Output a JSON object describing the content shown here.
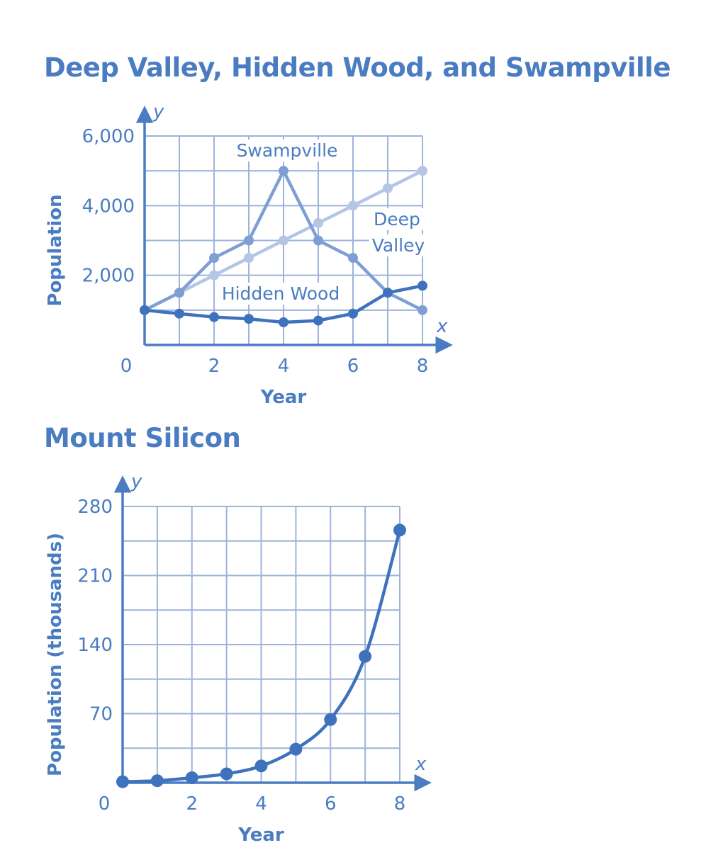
{
  "colors": {
    "axis": "#4a7cc2",
    "grid": "#9db3dc",
    "swampville": "#7e9fd4",
    "deep_valley": "#b4c5e6",
    "hidden_wood": "#3f72bd",
    "mount_silicon": "#3f72bd"
  },
  "chart_data": [
    {
      "type": "line",
      "title": "Deep Valley, Hidden Wood, and Swampville",
      "xlabel": "Year",
      "ylabel": "Population",
      "x_axis_var": "x",
      "y_axis_var": "y",
      "origin_label": "0",
      "xlim": [
        0,
        8
      ],
      "ylim": [
        0,
        6000
      ],
      "grid": true,
      "x_ticks": [
        2,
        4,
        6,
        8
      ],
      "x_tick_labels": [
        "2",
        "4",
        "6",
        "8"
      ],
      "y_ticks": [
        2000,
        4000,
        6000
      ],
      "y_tick_labels": [
        "2,000",
        "4,000",
        "6,000"
      ],
      "x": [
        0,
        1,
        2,
        3,
        4,
        5,
        6,
        7,
        8
      ],
      "series": [
        {
          "name": "Swampville",
          "color_key": "swampville",
          "values": [
            1000,
            1500,
            2500,
            3000,
            5000,
            3000,
            2500,
            1500,
            1000
          ]
        },
        {
          "name": "Deep Valley",
          "color_key": "deep_valley",
          "values": [
            1000,
            1500,
            2000,
            2500,
            3000,
            3500,
            4000,
            4500,
            5000
          ]
        },
        {
          "name": "Hidden Wood",
          "color_key": "hidden_wood",
          "values": [
            1000,
            900,
            800,
            750,
            650,
            700,
            900,
            1500,
            1700
          ]
        }
      ],
      "series_labels": {
        "swampville": "Swampville",
        "deep_valley_line1": "Deep",
        "deep_valley_line2": "Valley",
        "hidden_wood": "Hidden Wood"
      }
    },
    {
      "type": "line",
      "title": "Mount Silicon",
      "xlabel": "Year",
      "ylabel": "Population (thousands)",
      "x_axis_var": "x",
      "y_axis_var": "y",
      "origin_label": "0",
      "xlim": [
        0,
        8
      ],
      "ylim": [
        0,
        280
      ],
      "grid": true,
      "smooth": true,
      "x_ticks": [
        2,
        4,
        6,
        8
      ],
      "x_tick_labels": [
        "2",
        "4",
        "6",
        "8"
      ],
      "y_ticks": [
        70,
        140,
        210,
        280
      ],
      "y_tick_labels": [
        "70",
        "140",
        "210",
        "280"
      ],
      "x": [
        0,
        1,
        2,
        3,
        4,
        5,
        6,
        7,
        8
      ],
      "series": [
        {
          "color_key": "mount_silicon",
          "values": [
            1,
            2,
            5,
            9,
            17,
            34,
            64,
            128,
            256
          ]
        }
      ]
    }
  ]
}
